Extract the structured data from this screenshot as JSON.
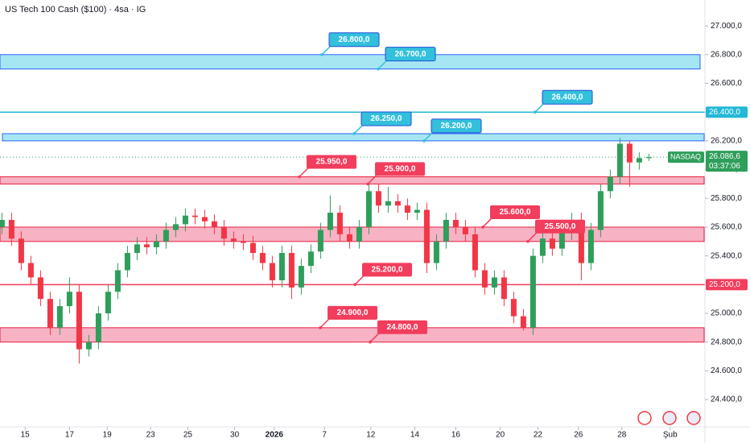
{
  "chart_data": {
    "type": "candlestick",
    "title": "US Tech 100 Cash ($100) · 4sa · IG",
    "exchange_tag": "NASDAQ",
    "last_price": {
      "value": 26086.6,
      "label": "26.086,6"
    },
    "countdown": "03:37:06",
    "up_color": "#2e9e5b",
    "down_color": "#f23645",
    "xlim": [
      -0.2,
      72.3
    ],
    "xticks": [
      {
        "value": 2.4,
        "label": "15"
      },
      {
        "value": 7,
        "label": "17"
      },
      {
        "value": 10.9,
        "label": "19"
      },
      {
        "value": 15.4,
        "label": "23"
      },
      {
        "value": 19.25,
        "label": "25"
      },
      {
        "value": 24.1,
        "label": "30"
      },
      {
        "value": 28.2,
        "label": "2026"
      },
      {
        "value": 33.4,
        "label": "7"
      },
      {
        "value": 38.2,
        "label": "12"
      },
      {
        "value": 42.75,
        "label": "14"
      },
      {
        "value": 47,
        "label": "16"
      },
      {
        "value": 51.6,
        "label": "20"
      },
      {
        "value": 55.5,
        "label": "22"
      },
      {
        "value": 59.7,
        "label": "26"
      },
      {
        "value": 64.2,
        "label": "28"
      },
      {
        "value": 69.2,
        "label": "Şub"
      }
    ],
    "ylim": [
      24210,
      27180
    ],
    "yticks": [
      {
        "value": 24400,
        "label": "24.400,0"
      },
      {
        "value": 24600,
        "label": "24.600,0"
      },
      {
        "value": 24800,
        "label": "24.800,0"
      },
      {
        "value": 25000,
        "label": "25.000,0"
      },
      {
        "value": 25200,
        "label": "25.200,0"
      },
      {
        "value": 25400,
        "label": "25.400,0"
      },
      {
        "value": 25600,
        "label": "25.600,0"
      },
      {
        "value": 25800,
        "label": "25.800,0"
      },
      {
        "value": 26000,
        "label": "26.000,0"
      },
      {
        "value": 26200,
        "label": "26.200,0"
      },
      {
        "value": 26400,
        "label": "26.400,0"
      },
      {
        "value": 26600,
        "label": "26.600,0"
      },
      {
        "value": 26800,
        "label": "26.800,0"
      },
      {
        "value": 27000,
        "label": "27.000,0"
      }
    ],
    "open": [
      25600,
      25650,
      25520,
      25350,
      25250,
      25100,
      24900,
      25050,
      25150,
      24750,
      24800,
      25000,
      25150,
      25300,
      25420,
      25480,
      25460,
      25500,
      25580,
      25620,
      25680,
      25670,
      25640,
      25600,
      25520,
      25500,
      25490,
      25420,
      25350,
      25230,
      25420,
      25180,
      25330,
      25430,
      25580,
      25700,
      25550,
      25500,
      25600,
      25850,
      25750,
      25780,
      25750,
      25700,
      25720,
      25350,
      25500,
      25650,
      25600,
      25550,
      25300,
      25180,
      25250,
      25100,
      24980,
      24900,
      25400,
      25520,
      25450,
      25560,
      25650,
      25350,
      25580,
      25850,
      25950,
      26180,
      26050,
      26080
    ],
    "high": [
      25700,
      25700,
      25570,
      25400,
      25300,
      25150,
      25100,
      25250,
      25200,
      24850,
      25050,
      25200,
      25350,
      25470,
      25530,
      25530,
      25550,
      25630,
      25670,
      25730,
      25730,
      25720,
      25690,
      25650,
      25570,
      25550,
      25540,
      25470,
      25400,
      25470,
      25470,
      25380,
      25480,
      25630,
      25820,
      25750,
      25600,
      25650,
      25900,
      25900,
      25880,
      25830,
      25800,
      25770,
      25770,
      25550,
      25700,
      25700,
      25650,
      25600,
      25350,
      25300,
      25300,
      25150,
      25030,
      25450,
      25570,
      25570,
      25610,
      25700,
      25700,
      25630,
      25900,
      26000,
      26220,
      26200,
      26120,
      26110
    ],
    "low": [
      25550,
      25470,
      25300,
      25200,
      25050,
      24850,
      24850,
      25000,
      24650,
      24700,
      24750,
      24950,
      25100,
      25250,
      25370,
      25410,
      25410,
      25450,
      25530,
      25570,
      25620,
      25590,
      25550,
      25470,
      25450,
      25440,
      25370,
      25300,
      25180,
      25180,
      25100,
      25130,
      25280,
      25380,
      25530,
      25500,
      25450,
      25450,
      25550,
      25700,
      25700,
      25700,
      25650,
      25650,
      25280,
      25300,
      25450,
      25550,
      25500,
      25250,
      25130,
      25130,
      25050,
      24930,
      24880,
      24850,
      25350,
      25400,
      25400,
      25510,
      25230,
      25300,
      25530,
      25800,
      25900,
      25880,
      26000,
      26060
    ],
    "close": [
      25650,
      25520,
      25350,
      25250,
      25100,
      24900,
      25050,
      25150,
      24750,
      24800,
      25000,
      25150,
      25300,
      25420,
      25480,
      25460,
      25500,
      25580,
      25620,
      25680,
      25670,
      25640,
      25600,
      25520,
      25500,
      25490,
      25420,
      25350,
      25230,
      25420,
      25180,
      25330,
      25430,
      25580,
      25700,
      25550,
      25500,
      25600,
      25850,
      25750,
      25780,
      25750,
      25700,
      25720,
      25350,
      25500,
      25650,
      25600,
      25550,
      25300,
      25180,
      25250,
      25100,
      24980,
      24900,
      25400,
      25520,
      25450,
      25560,
      25650,
      25350,
      25580,
      25850,
      25950,
      26180,
      26050,
      26080,
      26086.6
    ],
    "zones": [
      {
        "top": {
          "value": 26800,
          "label": "26.800,0"
        },
        "bottom": {
          "value": 26700,
          "label": "26.700,0"
        },
        "color": "#a6e6f2",
        "border": "#2962ff"
      },
      {
        "top": {
          "value": 26250,
          "label": "26.250,0"
        },
        "bottom": {
          "value": 26200,
          "label": "26.200,0"
        },
        "color": "#a6e6f2",
        "border": "#2962ff"
      },
      {
        "top": {
          "value": 25950,
          "label": "25.950,0"
        },
        "bottom": {
          "value": 25900,
          "label": "25.900,0"
        },
        "color": "#f7b3c4",
        "border": "#e91e3f"
      },
      {
        "top": {
          "value": 25600,
          "label": "25.600,0"
        },
        "bottom": {
          "value": 25500,
          "label": "25.500,0"
        },
        "color": "#f7b3c4",
        "border": "#e91e3f"
      },
      {
        "top": {
          "value": 24900,
          "label": "24.900,0"
        },
        "bottom": {
          "value": 24800,
          "label": "24.800,0"
        },
        "color": "#f7b3c4",
        "border": "#e91e3f"
      }
    ],
    "lines": [
      {
        "level": {
          "value": 26400,
          "label": "26.400,0"
        },
        "color": "#22b8d6"
      },
      {
        "level": {
          "value": 25200,
          "label": "25.200,0"
        },
        "color": "#f23d5c"
      }
    ]
  }
}
